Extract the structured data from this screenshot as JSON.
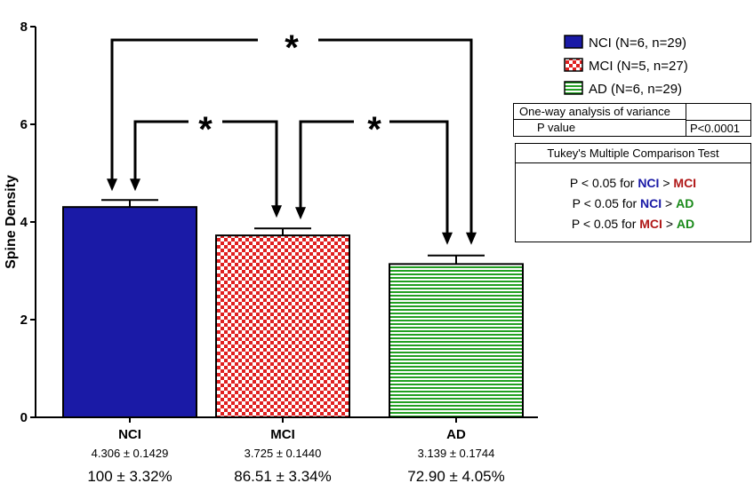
{
  "chart_data": {
    "type": "bar",
    "ylabel": "Spine Density",
    "ylim": [
      0,
      8
    ],
    "yticks": [
      0,
      2,
      4,
      6,
      8
    ],
    "categories": [
      "NCI",
      "MCI",
      "AD"
    ],
    "values": [
      4.306,
      3.725,
      3.139
    ],
    "errors": [
      0.1429,
      0.144,
      0.1744
    ],
    "mean_sem_labels": [
      "4.306  ± 0.1429",
      "3.725  ±  0.1440",
      "3.139  ±  0.1744"
    ],
    "percent_labels": [
      "100 ± 3.32%",
      "86.51 ± 3.34%",
      "72.90 ± 4.05%"
    ],
    "legend": [
      {
        "label": "NCI (N=6, n=29)",
        "color": "#1a1aa6",
        "pattern": "solid"
      },
      {
        "label": "MCI (N=5, n=27)",
        "color": "#e02020",
        "pattern": "checker"
      },
      {
        "label": "AD (N=6, n=29)",
        "color": "#22a022",
        "pattern": "horizontal-stripes"
      }
    ],
    "significance": [
      {
        "from": "NCI",
        "to": "AD",
        "label": "*"
      },
      {
        "from": "NCI",
        "to": "MCI",
        "label": "*"
      },
      {
        "from": "MCI",
        "to": "AD",
        "label": "*"
      }
    ],
    "grid": false,
    "legend_position": "top-right"
  },
  "anova": {
    "title": "One-way analysis of variance",
    "row_label": "P value",
    "row_value": "P<0.0001"
  },
  "tukey": {
    "title": "Tukey's Multiple Comparison Test",
    "rows": [
      {
        "prefix": "P < 0.05 for ",
        "a": "NCI",
        "op": " > ",
        "b": "MCI"
      },
      {
        "prefix": "P < 0.05 for ",
        "a": "NCI",
        "op": " > ",
        "b": "AD"
      },
      {
        "prefix": "P < 0.05 for ",
        "a": "MCI",
        "op": " > ",
        "b": "AD"
      }
    ]
  }
}
